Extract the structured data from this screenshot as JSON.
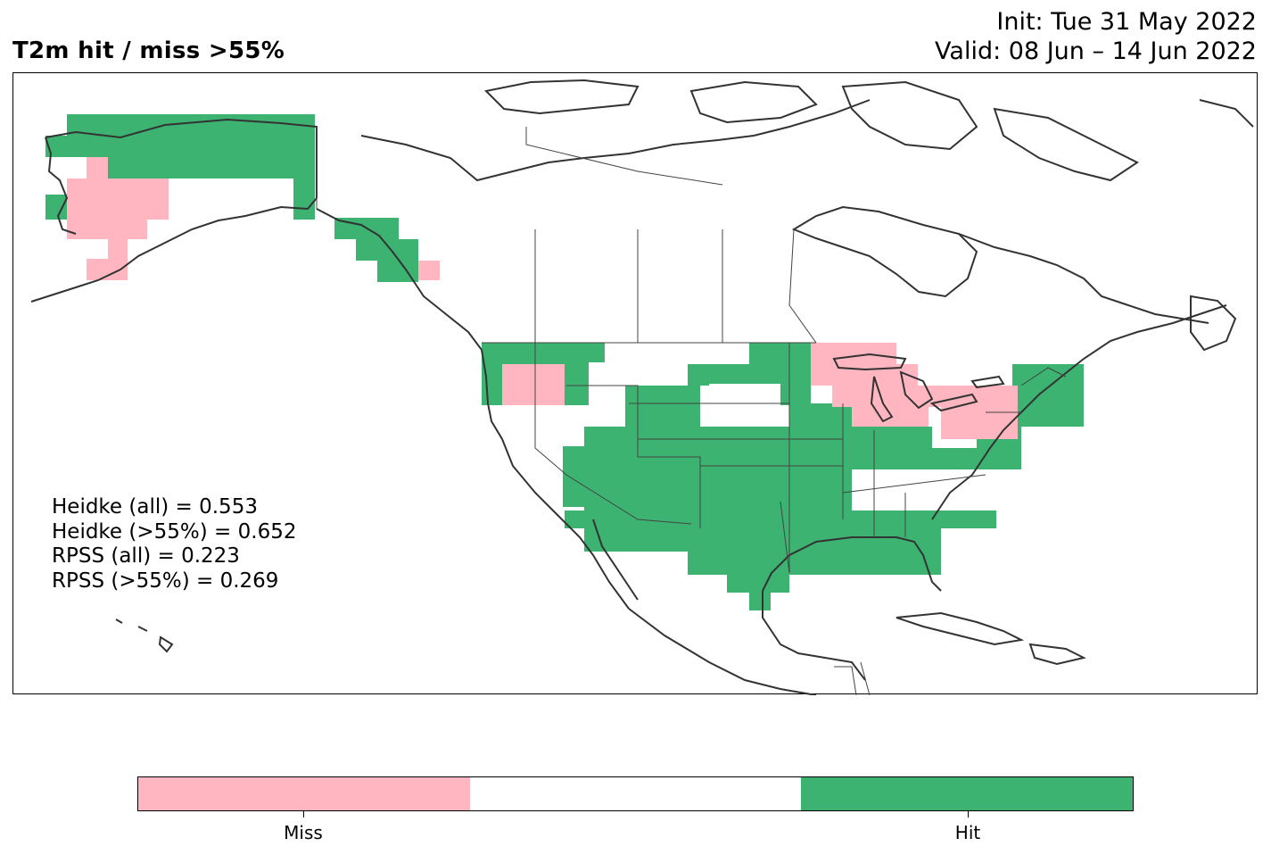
{
  "header": {
    "title": "T2m hit / miss  >55%",
    "init": "Init: Tue 31 May 2022",
    "valid": "Valid: 08 Jun – 14 Jun 2022"
  },
  "stats": [
    "Heidke (all) = 0.553",
    "Heidke (>55%) = 0.652",
    "RPSS (all) = 0.223",
    "RPSS (>55%) = 0.269"
  ],
  "colors": {
    "miss": "#ffb6c1",
    "none": "#ffffff",
    "hit": "#3cb371",
    "coast": "#333333"
  },
  "colorbar": {
    "labels": [
      "Miss",
      "Hit"
    ]
  }
}
